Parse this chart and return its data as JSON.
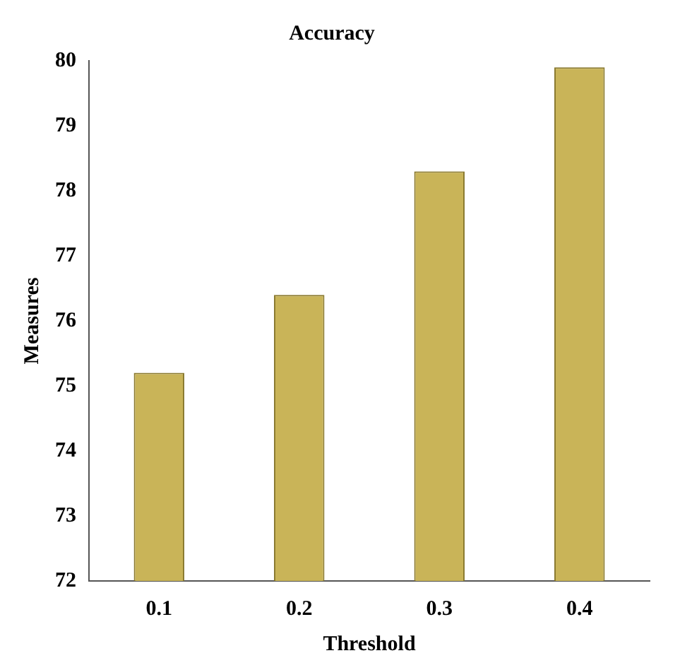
{
  "chart_data": {
    "type": "bar",
    "title": "Accuracy",
    "xlabel": "Threshold",
    "ylabel": "Measures",
    "categories": [
      "0.1",
      "0.2",
      "0.3",
      "0.4"
    ],
    "values": [
      75.2,
      76.4,
      78.3,
      79.9
    ],
    "color": "#c9b458",
    "ylim": [
      72,
      80
    ],
    "yticks": [
      72,
      73,
      74,
      75,
      76,
      77,
      78,
      79,
      80
    ],
    "grid": false,
    "legend": false
  }
}
